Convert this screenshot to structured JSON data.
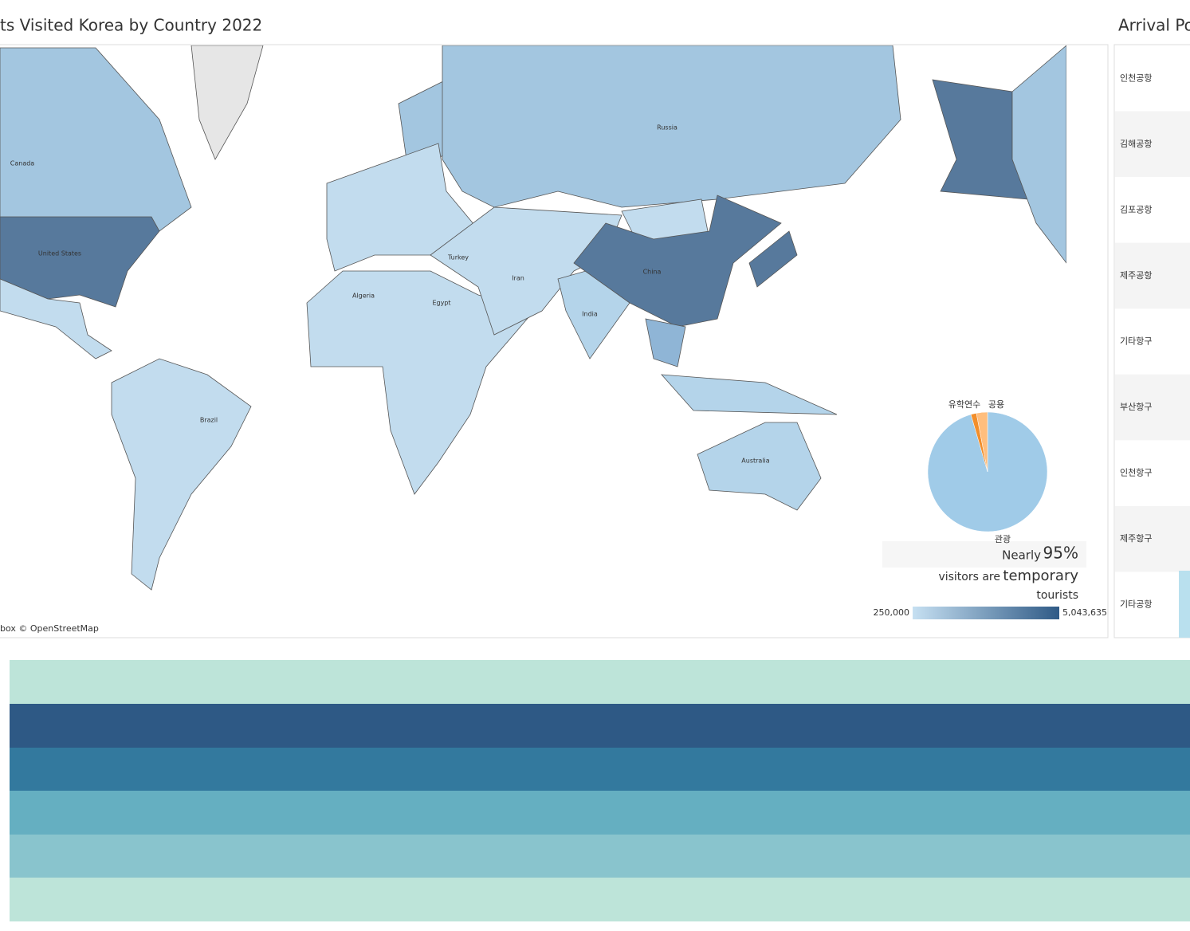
{
  "map": {
    "title": "ts Visited Korea by Country 2022",
    "attribution": "box © OpenStreetMap",
    "country_labels": [
      "Canada",
      "United States",
      "Russia",
      "China",
      "India",
      "Brazil",
      "Australia",
      "Algeria",
      "Egypt",
      "Turkey",
      "Iran"
    ],
    "legend": {
      "min": {
        "value": 250000,
        "label": "250,000"
      },
      "max": {
        "value": 5043635,
        "label": "5,043,635"
      }
    },
    "callout": {
      "lead": "Nearly",
      "highlight": "95%",
      "line2_lead": "visitors are",
      "line2_highlight": "temporary",
      "line3": "tourists"
    }
  },
  "chart_data": {
    "type": "pie",
    "categories": [
      "관광",
      "유학연수",
      "공용"
    ],
    "values": [
      95.5,
      1.5,
      3
    ],
    "colors": [
      "#a0cbe8",
      "#f28e2b",
      "#ffbe7d"
    ]
  },
  "arrival_ports": {
    "title": "Arrival Po",
    "rows": [
      "인천공항",
      "김해공항",
      "김포공항",
      "제주공항",
      "기타항구",
      "부산항구",
      "인천항구",
      "제주항구",
      "기타공항"
    ]
  }
}
